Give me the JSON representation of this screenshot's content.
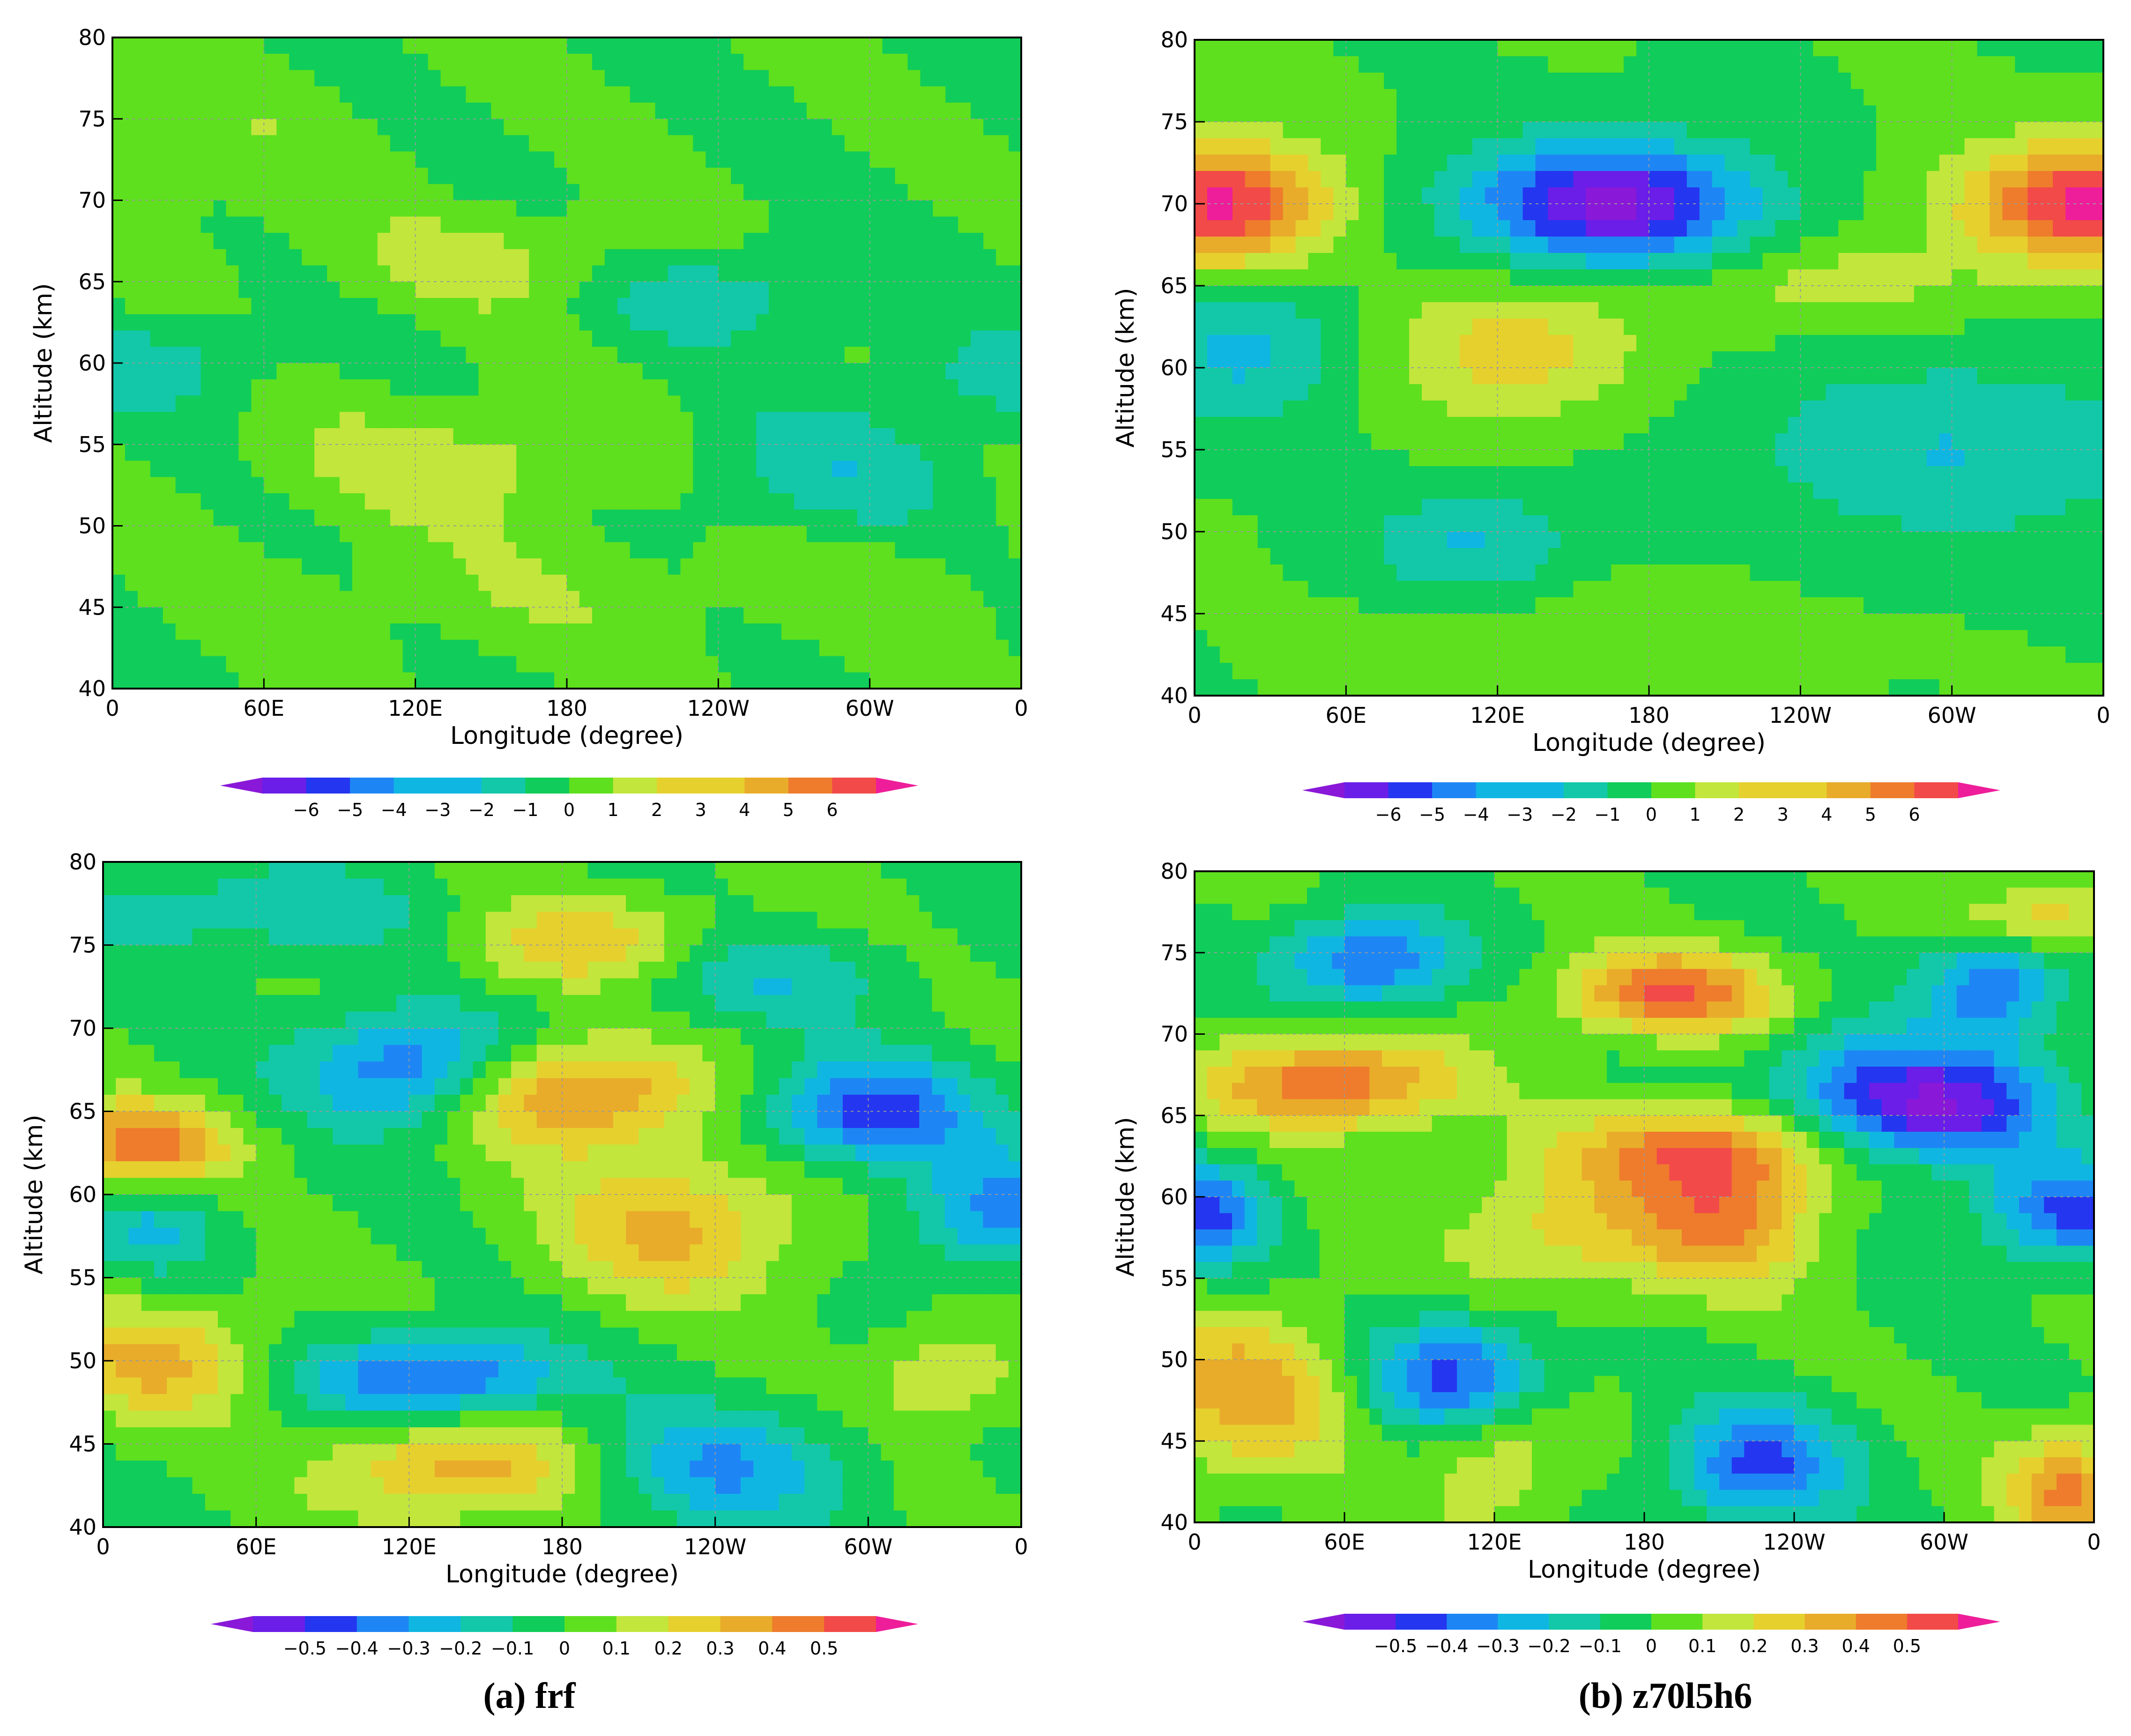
{
  "palette": [
    "#8a18d8",
    "#6a1ee8",
    "#2436f0",
    "#1e86f4",
    "#10b6e2",
    "#12c8a8",
    "#10cc5a",
    "#5ee01e",
    "#c2e63c",
    "#e6d02e",
    "#e8ac2a",
    "#ee7c2c",
    "#f24a48",
    "#ee1e9a"
  ],
  "captions": {
    "a": {
      "letter": "(a)",
      "label": "frf"
    },
    "b": {
      "letter": "(b)",
      "label": "z70l5h6"
    }
  },
  "chart_data": [
    {
      "id": "top-left",
      "type": "heatmap",
      "xlabel": "Longitude (degree)",
      "ylabel": "Altitude (km)",
      "x_ticks": [
        "0",
        "60E",
        "120E",
        "180",
        "120W",
        "60W",
        "0"
      ],
      "y_ticks": [
        "40",
        "45",
        "50",
        "55",
        "60",
        "65",
        "70",
        "75",
        "80"
      ],
      "xlim": [
        0,
        360
      ],
      "ylim": [
        40,
        80
      ],
      "grid": true,
      "colorbar_labels": [
        "−6",
        "−5",
        "−4",
        "−3",
        "−2",
        "−1",
        "0",
        "1",
        "2",
        "3",
        "4",
        "5",
        "6"
      ],
      "levels": [
        -6,
        -5,
        -4,
        -3,
        -2,
        -1,
        0,
        1,
        2,
        3,
        4,
        5,
        6
      ],
      "features": [
        {
          "lon": 160,
          "alt": 66,
          "amp": 1.6,
          "sx": 45,
          "sy": 2.2
        },
        {
          "lon": 240,
          "alt": 64.5,
          "amp": -1.7,
          "sx": 50,
          "sy": 2.2
        },
        {
          "lon": 140,
          "alt": 54,
          "amp": 1.6,
          "sx": 50,
          "sy": 2.5
        },
        {
          "lon": 280,
          "alt": 53,
          "amp": -1.7,
          "sx": 40,
          "sy": 3
        },
        {
          "lon": 20,
          "alt": 60,
          "amp": -1.5,
          "sx": 30,
          "sy": 2
        },
        {
          "lon": 350,
          "alt": 59,
          "amp": -1.4,
          "sx": 30,
          "sy": 2
        },
        {
          "lon": 30,
          "alt": 73,
          "amp": 0.7,
          "sx": 50,
          "sy": 4
        },
        {
          "lon": 300,
          "alt": 47,
          "amp": 0.6,
          "sx": 60,
          "sy": 3
        },
        {
          "lon": 150,
          "alt": 46,
          "amp": 0.7,
          "sx": 60,
          "sy": 3
        }
      ]
    },
    {
      "id": "top-right",
      "type": "heatmap",
      "xlabel": "Longitude (degree)",
      "ylabel": "Altitude (km)",
      "x_ticks": [
        "0",
        "60E",
        "120E",
        "180",
        "120W",
        "60W",
        "0"
      ],
      "y_ticks": [
        "40",
        "45",
        "50",
        "55",
        "60",
        "65",
        "70",
        "75",
        "80"
      ],
      "xlim": [
        0,
        360
      ],
      "ylim": [
        40,
        80
      ],
      "grid": true,
      "colorbar_labels": [
        "−6",
        "−5",
        "−4",
        "−3",
        "−2",
        "−1",
        "0",
        "1",
        "2",
        "3",
        "4",
        "5",
        "6"
      ],
      "levels": [
        -6,
        -5,
        -4,
        -3,
        -2,
        -1,
        0,
        1,
        2,
        3,
        4,
        5,
        6
      ],
      "features": [
        {
          "lon": 165,
          "alt": 70,
          "amp": -6.3,
          "sx": 40,
          "sy": 2.6
        },
        {
          "lon": 10,
          "alt": 70,
          "amp": 6.3,
          "sx": 30,
          "sy": 2.6
        },
        {
          "lon": 355,
          "alt": 70,
          "amp": 6.3,
          "sx": 35,
          "sy": 2.6
        },
        {
          "lon": 125,
          "alt": 61,
          "amp": 2.6,
          "sx": 35,
          "sy": 3
        },
        {
          "lon": 20,
          "alt": 61,
          "amp": -2.3,
          "sx": 30,
          "sy": 3
        },
        {
          "lon": 300,
          "alt": 55,
          "amp": -2,
          "sx": 60,
          "sy": 4
        },
        {
          "lon": 110,
          "alt": 49,
          "amp": -2.2,
          "sx": 30,
          "sy": 2.5
        },
        {
          "lon": 250,
          "alt": 65,
          "amp": 1.5,
          "sx": 40,
          "sy": 2
        },
        {
          "lon": 150,
          "alt": 44,
          "amp": 0.7,
          "sx": 60,
          "sy": 3
        }
      ]
    },
    {
      "id": "bottom-left",
      "type": "heatmap",
      "xlabel": "Longitude (degree)",
      "ylabel": "Altitude (km)",
      "x_ticks": [
        "0",
        "60E",
        "120E",
        "180",
        "120W",
        "60W",
        "0"
      ],
      "y_ticks": [
        "40",
        "45",
        "50",
        "55",
        "60",
        "65",
        "70",
        "75",
        "80"
      ],
      "xlim": [
        0,
        360
      ],
      "ylim": [
        40,
        80
      ],
      "grid": true,
      "colorbar_labels": [
        "−0.5",
        "−0.4",
        "−0.3",
        "−0.2",
        "−0.1",
        "0",
        "0.1",
        "0.2",
        "0.3",
        "0.4",
        "0.5"
      ],
      "levels": [
        -0.6,
        -0.5,
        -0.4,
        -0.3,
        -0.2,
        -0.1,
        0,
        0.1,
        0.2,
        0.3,
        0.4,
        0.5,
        0.6
      ],
      "features": [
        {
          "lon": 185,
          "alt": 66,
          "amp": 0.45,
          "sx": 35,
          "sy": 2.3
        },
        {
          "lon": 15,
          "alt": 63,
          "amp": 0.45,
          "sx": 25,
          "sy": 1.8
        },
        {
          "lon": 120,
          "alt": 67.5,
          "amp": -0.42,
          "sx": 30,
          "sy": 2.5
        },
        {
          "lon": 300,
          "alt": 65,
          "amp": -0.45,
          "sx": 30,
          "sy": 2.2
        },
        {
          "lon": 225,
          "alt": 58,
          "amp": 0.32,
          "sx": 35,
          "sy": 3
        },
        {
          "lon": 130,
          "alt": 49,
          "amp": -0.45,
          "sx": 35,
          "sy": 1.8
        },
        {
          "lon": 140,
          "alt": 43.5,
          "amp": 0.36,
          "sx": 35,
          "sy": 2.2
        },
        {
          "lon": 20,
          "alt": 50,
          "amp": 0.32,
          "sx": 30,
          "sy": 2.5
        },
        {
          "lon": 240,
          "alt": 43.5,
          "amp": -0.3,
          "sx": 35,
          "sy": 2.5
        },
        {
          "lon": 350,
          "alt": 59,
          "amp": -0.32,
          "sx": 25,
          "sy": 2.5
        },
        {
          "lon": 190,
          "alt": 75,
          "amp": 0.3,
          "sx": 35,
          "sy": 2
        },
        {
          "lon": 330,
          "alt": 49,
          "amp": 0.22,
          "sx": 20,
          "sy": 2
        },
        {
          "lon": 20,
          "alt": 58,
          "amp": -0.2,
          "sx": 20,
          "sy": 2
        },
        {
          "lon": 250,
          "alt": 73,
          "amp": -0.2,
          "sx": 40,
          "sy": 2
        },
        {
          "lon": 60,
          "alt": 77,
          "amp": -0.18,
          "sx": 50,
          "sy": 2
        }
      ]
    },
    {
      "id": "bottom-right",
      "type": "heatmap",
      "xlabel": "Longitude (degree)",
      "ylabel": "Altitude (km)",
      "x_ticks": [
        "0",
        "60E",
        "120E",
        "180",
        "120W",
        "60W",
        "0"
      ],
      "y_ticks": [
        "40",
        "45",
        "50",
        "55",
        "60",
        "65",
        "70",
        "75",
        "80"
      ],
      "xlim": [
        0,
        360
      ],
      "ylim": [
        40,
        80
      ],
      "grid": true,
      "colorbar_labels": [
        "−0.5",
        "−0.4",
        "−0.3",
        "−0.2",
        "−0.1",
        "0",
        "0.1",
        "0.2",
        "0.3",
        "0.4",
        "0.5"
      ],
      "levels": [
        -0.6,
        -0.5,
        -0.4,
        -0.3,
        -0.2,
        -0.1,
        0,
        0.1,
        0.2,
        0.3,
        0.4,
        0.5,
        0.6
      ],
      "features": [
        {
          "lon": 300,
          "alt": 65.5,
          "amp": -0.55,
          "sx": 30,
          "sy": 2.3
        },
        {
          "lon": 260,
          "alt": 67,
          "amp": -0.25,
          "sx": 25,
          "sy": 2.5
        },
        {
          "lon": 55,
          "alt": 67,
          "amp": 0.5,
          "sx": 35,
          "sy": 2
        },
        {
          "lon": 190,
          "alt": 72.5,
          "amp": 0.5,
          "sx": 30,
          "sy": 1.8
        },
        {
          "lon": 70,
          "alt": 74.5,
          "amp": -0.42,
          "sx": 25,
          "sy": 2
        },
        {
          "lon": 105,
          "alt": 49,
          "amp": -0.45,
          "sx": 25,
          "sy": 2.5
        },
        {
          "lon": 225,
          "alt": 43.5,
          "amp": -0.42,
          "sx": 25,
          "sy": 2.5
        },
        {
          "lon": 350,
          "alt": 59,
          "amp": -0.42,
          "sx": 25,
          "sy": 2.2
        },
        {
          "lon": 5,
          "alt": 59,
          "amp": -0.42,
          "sx": 18,
          "sy": 2.2
        },
        {
          "lon": 20,
          "alt": 48,
          "amp": 0.35,
          "sx": 30,
          "sy": 3.5
        },
        {
          "lon": 215,
          "alt": 59,
          "amp": 0.4,
          "sx": 25,
          "sy": 3
        },
        {
          "lon": 200,
          "alt": 63,
          "amp": 0.38,
          "sx": 35,
          "sy": 1.8
        },
        {
          "lon": 350,
          "alt": 42,
          "amp": 0.42,
          "sx": 18,
          "sy": 2.5
        },
        {
          "lon": 320,
          "alt": 73,
          "amp": -0.4,
          "sx": 20,
          "sy": 2.5
        },
        {
          "lon": 150,
          "alt": 58,
          "amp": 0.25,
          "sx": 35,
          "sy": 3
        },
        {
          "lon": 340,
          "alt": 77,
          "amp": 0.3,
          "sx": 25,
          "sy": 1.5
        },
        {
          "lon": 120,
          "alt": 44,
          "amp": 0.22,
          "sx": 20,
          "sy": 3
        }
      ]
    }
  ]
}
